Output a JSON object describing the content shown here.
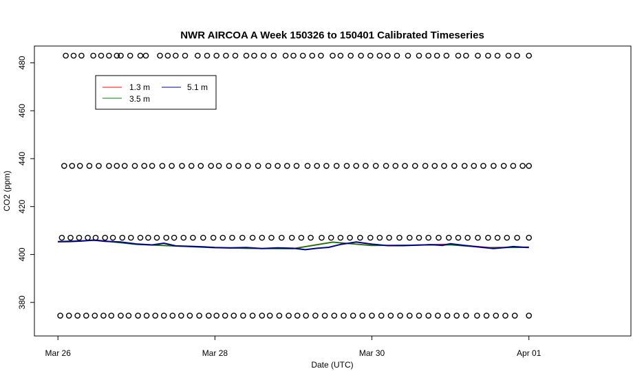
{
  "chart_data": {
    "type": "line",
    "title": "NWR AIRCOA A  Week 150326 to 150401  Calibrated Timeseries",
    "xlabel": "Date (UTC)",
    "ylabel": "CO2 (ppm)",
    "x_ticks": [
      {
        "label": "Mar 26",
        "day": 0
      },
      {
        "label": "Mar 28",
        "day": 2
      },
      {
        "label": "Mar 30",
        "day": 4
      },
      {
        "label": "Apr 01",
        "day": 6
      }
    ],
    "y_ticks": [
      380,
      400,
      420,
      440,
      460,
      480
    ],
    "xlim_days": [
      -0.3,
      7.3
    ],
    "ylim": [
      366,
      487
    ],
    "legend": {
      "position": "top-left",
      "entries": [
        {
          "label": "1.3 m",
          "color": "#ff0000"
        },
        {
          "label": "3.5 m",
          "color": "#008000"
        },
        {
          "label": "5.1 m",
          "color": "#00008b"
        }
      ]
    },
    "series": [
      {
        "name": "1.3 m",
        "color": "#ff0000",
        "x_days": [
          0,
          0.5,
          1.0,
          1.5,
          2.0,
          2.5,
          3.0,
          3.5,
          4.0,
          4.5,
          5.0,
          5.5,
          6.0
        ],
        "y": [
          405.4,
          406.0,
          404.3,
          403.6,
          402.9,
          402.5,
          402.5,
          405.2,
          403.8,
          403.9,
          404.3,
          402.9,
          403.1
        ]
      },
      {
        "name": "3.5 m",
        "color": "#008000",
        "x_days": [
          0,
          0.5,
          1.0,
          1.5,
          2.0,
          2.5,
          3.0,
          3.5,
          4.0,
          4.5,
          5.0,
          5.5,
          6.0
        ],
        "y": [
          405.4,
          405.9,
          404.2,
          403.5,
          402.8,
          402.5,
          402.4,
          405.1,
          403.7,
          403.9,
          404.0,
          402.8,
          403.0
        ]
      },
      {
        "name": "5.1 m",
        "color": "#00008b",
        "x_days": [
          0,
          0.15,
          0.3,
          0.45,
          0.6,
          0.8,
          1.0,
          1.2,
          1.35,
          1.5,
          1.7,
          1.85,
          2.0,
          2.2,
          2.4,
          2.6,
          2.8,
          3.0,
          3.15,
          3.3,
          3.45,
          3.6,
          3.8,
          4.0,
          4.2,
          4.4,
          4.6,
          4.75,
          4.9,
          5.0,
          5.2,
          5.4,
          5.55,
          5.7,
          5.8,
          5.95,
          6.0
        ],
        "y": [
          405.3,
          405.4,
          405.6,
          406.0,
          405.5,
          405.2,
          404.4,
          404.0,
          404.7,
          403.6,
          403.4,
          403.2,
          402.9,
          402.8,
          402.9,
          402.5,
          402.8,
          402.6,
          402.0,
          402.6,
          403.0,
          404.2,
          405.2,
          404.3,
          403.7,
          403.7,
          403.9,
          404.1,
          403.8,
          404.5,
          403.7,
          403.0,
          402.5,
          402.9,
          403.3,
          403.0,
          402.9
        ]
      }
    ],
    "calibration_points": {
      "marker": "open-circle",
      "levels": [
        {
          "y": 483.0,
          "x_days": [
            0.1,
            0.2,
            0.3,
            0.45,
            0.55,
            0.65,
            0.75,
            0.8,
            0.92,
            1.05,
            1.12,
            1.3,
            1.4,
            1.5,
            1.62,
            1.78,
            1.9,
            2.02,
            2.14,
            2.26,
            2.4,
            2.5,
            2.62,
            2.75,
            2.9,
            3.0,
            3.12,
            3.24,
            3.35,
            3.5,
            3.6,
            3.73,
            3.86,
            3.98,
            4.1,
            4.2,
            4.32,
            4.46,
            4.6,
            4.72,
            4.83,
            4.95,
            5.1,
            5.2,
            5.35,
            5.48,
            5.6,
            5.74,
            5.85,
            6.0
          ]
        },
        {
          "y": 437.0,
          "x_days": [
            0.08,
            0.18,
            0.28,
            0.4,
            0.52,
            0.65,
            0.75,
            0.85,
            0.98,
            1.1,
            1.2,
            1.33,
            1.45,
            1.58,
            1.7,
            1.82,
            1.95,
            2.05,
            2.18,
            2.3,
            2.42,
            2.55,
            2.68,
            2.8,
            2.92,
            3.04,
            3.18,
            3.3,
            3.42,
            3.55,
            3.68,
            3.8,
            3.92,
            4.05,
            4.18,
            4.3,
            4.42,
            4.55,
            4.68,
            4.8,
            4.92,
            5.05,
            5.18,
            5.3,
            5.42,
            5.55,
            5.68,
            5.8,
            5.92,
            6.0
          ]
        },
        {
          "y": 407.0,
          "x_days": [
            0.05,
            0.16,
            0.27,
            0.38,
            0.48,
            0.6,
            0.7,
            0.82,
            0.93,
            1.05,
            1.15,
            1.26,
            1.38,
            1.48,
            1.6,
            1.72,
            1.85,
            1.98,
            2.1,
            2.22,
            2.35,
            2.48,
            2.6,
            2.72,
            2.85,
            2.98,
            3.1,
            3.22,
            3.36,
            3.48,
            3.6,
            3.72,
            3.85,
            3.98,
            4.1,
            4.22,
            4.35,
            4.48,
            4.6,
            4.72,
            4.85,
            4.98,
            5.1,
            5.22,
            5.35,
            5.48,
            5.6,
            5.72,
            5.85,
            6.0
          ]
        },
        {
          "y": 374.5,
          "x_days": [
            0.03,
            0.14,
            0.25,
            0.36,
            0.47,
            0.58,
            0.68,
            0.8,
            0.9,
            1.02,
            1.13,
            1.24,
            1.35,
            1.46,
            1.57,
            1.68,
            1.8,
            1.92,
            2.02,
            2.13,
            2.24,
            2.36,
            2.48,
            2.6,
            2.7,
            2.82,
            2.94,
            3.05,
            3.16,
            3.28,
            3.4,
            3.52,
            3.64,
            3.76,
            3.88,
            4.0,
            4.12,
            4.24,
            4.36,
            4.48,
            4.6,
            4.72,
            4.84,
            4.96,
            5.08,
            5.2,
            5.34,
            5.46,
            5.58,
            5.7,
            5.82,
            6.0
          ]
        }
      ]
    }
  }
}
